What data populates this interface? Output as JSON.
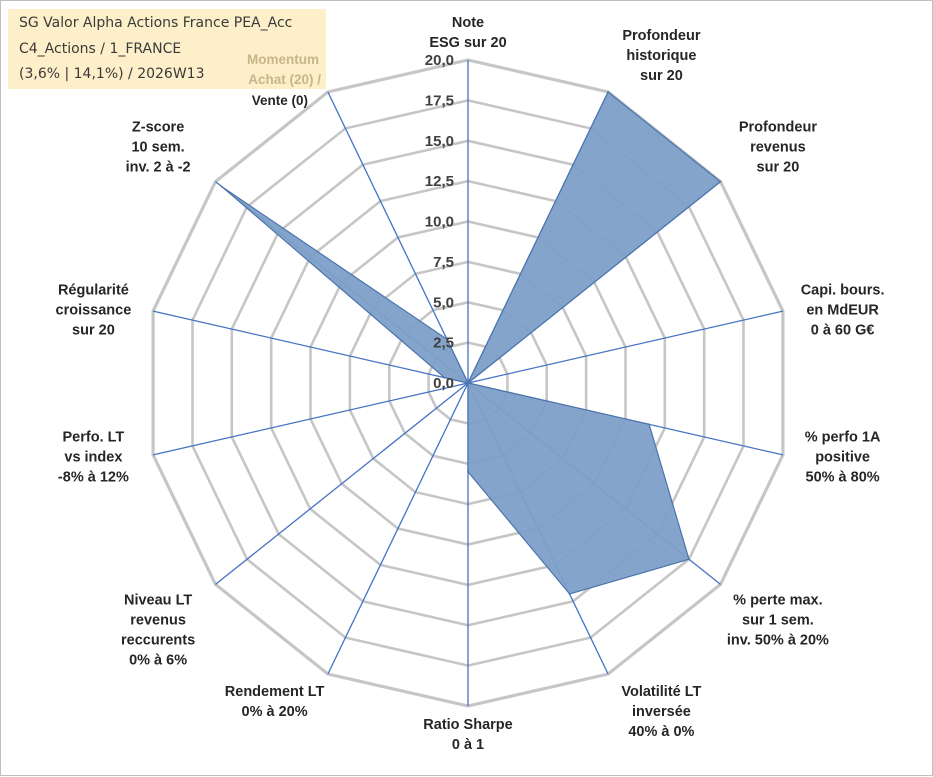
{
  "info": {
    "line1": "SG Valor Alpha Actions France PEA_Acc",
    "line2": "C4_Actions / 1_FRANCE",
    "line3": "(3,6% | 14,1%) / 2026W13"
  },
  "colors": {
    "fill": "#7d9fc8",
    "stroke": "#4c75ad",
    "spoke": "#4472c4",
    "grid": "#c6c6c6",
    "text": "#262626",
    "box": "#fdefc9",
    "faded": "#c8b58a"
  },
  "chart_data": {
    "type": "radar",
    "rmin": 0,
    "rmax": 20,
    "tick_labels": [
      "0,0",
      "2,5",
      "5,0",
      "7,5",
      "10,0",
      "12,5",
      "15,0",
      "17,5",
      "20,0"
    ],
    "categories": [
      {
        "lines": [
          "Note",
          "ESG sur 20"
        ]
      },
      {
        "lines": [
          "Profondeur",
          "historique",
          "sur 20"
        ]
      },
      {
        "lines": [
          "Profondeur",
          "revenus",
          "sur 20"
        ]
      },
      {
        "lines": [
          "Capi. bours.",
          "en MdEUR",
          "0 à 60 G€"
        ]
      },
      {
        "lines": [
          "% perfo 1A",
          "positive",
          "50% à 80%"
        ]
      },
      {
        "lines": [
          "% perte max.",
          "sur 1 sem.",
          "inv. 50% à 20%"
        ]
      },
      {
        "lines": [
          "Volatilité LT",
          "inversée",
          "40% à 0%"
        ]
      },
      {
        "lines": [
          "Ratio Sharpe",
          "0 à 1"
        ]
      },
      {
        "lines": [
          "Rendement LT",
          "0% à 20%"
        ]
      },
      {
        "lines": [
          "Niveau LT",
          "revenus",
          "reccurents",
          "0% à 6%"
        ]
      },
      {
        "lines": [
          "Perfo. LT",
          "vs index",
          "-8% à 12%"
        ]
      },
      {
        "lines": [
          "Régularité",
          "croissance",
          "sur 20"
        ]
      },
      {
        "lines": [
          "Z-score",
          "10 sem.",
          "inv. 2 à -2"
        ]
      },
      {
        "lines": [
          "Momentum",
          "Achat (20) /",
          "Vente (0)"
        ]
      }
    ],
    "series": [
      {
        "name": "SG Valor Alpha Actions France PEA_Acc",
        "values": [
          0,
          20,
          20,
          0,
          11.5,
          17.5,
          14.5,
          5.5,
          0,
          0,
          0,
          1.5,
          19.5,
          3
        ]
      }
    ]
  }
}
